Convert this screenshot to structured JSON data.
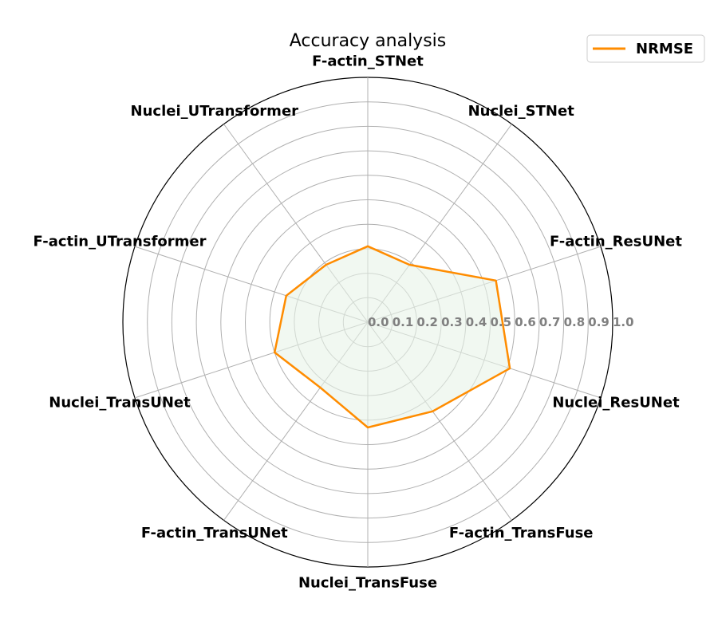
{
  "chart_data": {
    "type": "radar",
    "title": "Accuracy analysis",
    "categories": [
      "F-actin_STNet",
      "Nuclei_STNet",
      "F-actin_ResUNet",
      "Nuclei_ResUNet",
      "F-actin_TransFuse",
      "Nuclei_TransFuse",
      "F-actin_TransUNet",
      "Nuclei_TransUNet",
      "F-actin_UTransformer",
      "Nuclei_UTransformer"
    ],
    "series": [
      {
        "name": "NRMSE",
        "color": "#ff8c00",
        "fill": "#e8f4e8",
        "values": [
          0.31,
          0.29,
          0.55,
          0.61,
          0.45,
          0.43,
          0.33,
          0.4,
          0.35,
          0.29
        ]
      }
    ],
    "radial_ticks": [
      "0.0",
      "0.1",
      "0.2",
      "0.3",
      "0.4",
      "0.5",
      "0.6",
      "0.7",
      "0.8",
      "0.9",
      "1.0"
    ],
    "rlim": [
      0,
      1.0
    ],
    "grid": true,
    "legend_position": "top-right"
  }
}
